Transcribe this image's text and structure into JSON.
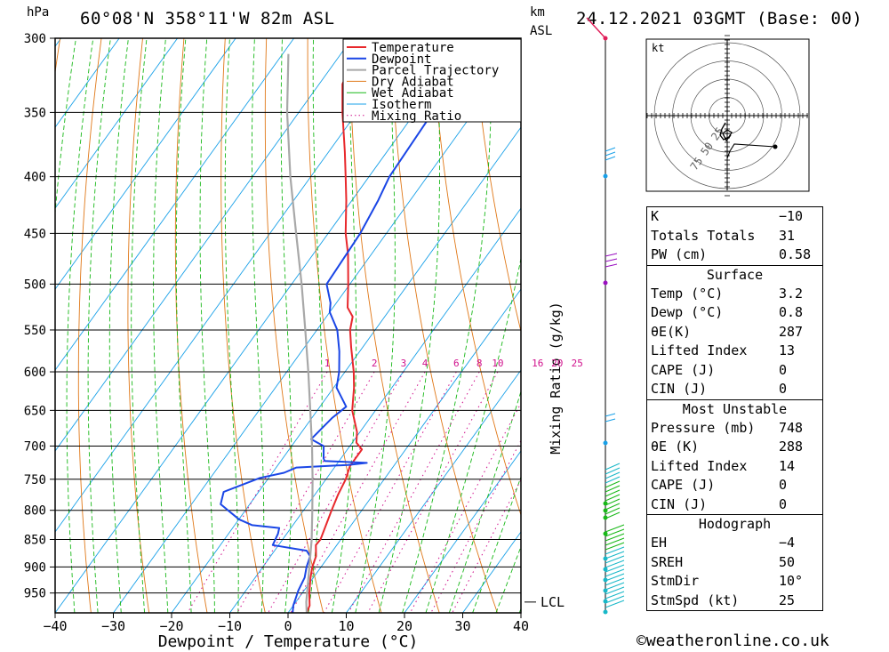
{
  "header": {
    "hpa_label": "hPa",
    "location": "60°08'N  358°11'W  82m  ASL",
    "km_label": "km",
    "asl_label": "ASL",
    "datetime": "24.12.2021  03GMT  (Base: 00)"
  },
  "chart_data": {
    "type": "line",
    "xlabel": "Dewpoint / Temperature (°C)",
    "ylabel": "hPa",
    "y2label": "Mixing Ratio (g/kg)",
    "xlim": [
      -40,
      40
    ],
    "ylim": [
      990,
      300
    ],
    "y_scale": "log",
    "x_ticks": [
      "-40",
      "-30",
      "-20",
      "-10",
      "0",
      "10",
      "20",
      "30",
      "40"
    ],
    "y_ticks": [
      "300",
      "350",
      "400",
      "450",
      "500",
      "550",
      "600",
      "650",
      "700",
      "750",
      "800",
      "850",
      "900",
      "950"
    ],
    "legend": [
      "Temperature",
      "Dewpoint",
      "Parcel Trajectory",
      "Dry Adiabat",
      "Wet Adiabat",
      "Isotherm",
      "Mixing Ratio"
    ],
    "legend_position": "top-right",
    "mixing_ratio_labels": [
      "1",
      "2",
      "3",
      "4",
      "6",
      "8",
      "10",
      "16",
      "20",
      "25"
    ],
    "lcl_label": "LCL",
    "lcl_pressure": 968,
    "colors": {
      "temperature": "#e8282c",
      "dewpoint": "#1a46e6",
      "parcel": "#a8a8a8",
      "dry_adiabat": "#e07818",
      "wet_adiabat": "#18b818",
      "isotherm": "#18a0e8",
      "mixing_ratio": "#d0108c"
    },
    "series": [
      {
        "name": "Temperature",
        "points": [
          [
            990,
            3.2
          ],
          [
            975,
            2.8
          ],
          [
            950,
            1.2
          ],
          [
            920,
            -0.5
          ],
          [
            900,
            -1.5
          ],
          [
            880,
            -2.2
          ],
          [
            860,
            -3.6
          ],
          [
            850,
            -3.5
          ],
          [
            820,
            -4.5
          ],
          [
            800,
            -5.2
          ],
          [
            775,
            -6.0
          ],
          [
            750,
            -6.6
          ],
          [
            730,
            -7.5
          ],
          [
            720,
            -7.5
          ],
          [
            705,
            -7.5
          ],
          [
            695,
            -9.3
          ],
          [
            680,
            -10.5
          ],
          [
            650,
            -14.0
          ],
          [
            620,
            -16.5
          ],
          [
            600,
            -18.5
          ],
          [
            570,
            -22.0
          ],
          [
            550,
            -24.3
          ],
          [
            535,
            -25.5
          ],
          [
            525,
            -27.5
          ],
          [
            500,
            -30.3
          ],
          [
            470,
            -34.0
          ],
          [
            450,
            -37.0
          ],
          [
            420,
            -41.0
          ],
          [
            400,
            -44.0
          ],
          [
            380,
            -47.2
          ],
          [
            350,
            -52.5
          ],
          [
            330,
            -56.0
          ],
          [
            315,
            -57.0
          ],
          [
            300,
            -58.0
          ]
        ]
      },
      {
        "name": "Dewpoint",
        "points": [
          [
            990,
            0.8
          ],
          [
            975,
            0.0
          ],
          [
            960,
            -0.5
          ],
          [
            945,
            -1.0
          ],
          [
            920,
            -1.5
          ],
          [
            900,
            -2.5
          ],
          [
            880,
            -3.2
          ],
          [
            870,
            -4.5
          ],
          [
            860,
            -11.0
          ],
          [
            840,
            -11.5
          ],
          [
            830,
            -12.0
          ],
          [
            825,
            -17.0
          ],
          [
            815,
            -20.0
          ],
          [
            790,
            -25.0
          ],
          [
            770,
            -26.0
          ],
          [
            748,
            -21.5
          ],
          [
            740,
            -18.0
          ],
          [
            732,
            -16.5
          ],
          [
            728,
            -8.0
          ],
          [
            725,
            -5.0
          ],
          [
            722,
            -12.5
          ],
          [
            718,
            -13.0
          ],
          [
            700,
            -14.5
          ],
          [
            690,
            -17.5
          ],
          [
            660,
            -16.5
          ],
          [
            645,
            -15.5
          ],
          [
            620,
            -19.5
          ],
          [
            600,
            -21.0
          ],
          [
            575,
            -23.5
          ],
          [
            550,
            -26.5
          ],
          [
            530,
            -30.0
          ],
          [
            520,
            -31.0
          ],
          [
            500,
            -34.0
          ],
          [
            450,
            -34.5
          ],
          [
            420,
            -35.5
          ],
          [
            400,
            -36.5
          ],
          [
            350,
            -37.0
          ],
          [
            320,
            -36.5
          ],
          [
            310,
            -34.5
          ],
          [
            305,
            -32.5
          ],
          [
            300,
            -31.0
          ]
        ]
      },
      {
        "name": "Parcel Trajectory",
        "points": [
          [
            990,
            3.2
          ],
          [
            968,
            1.8
          ],
          [
            900,
            -2.0
          ],
          [
            850,
            -5.0
          ],
          [
            800,
            -8.5
          ],
          [
            750,
            -12.3
          ],
          [
            700,
            -16.5
          ],
          [
            650,
            -21.2
          ],
          [
            600,
            -26.3
          ],
          [
            550,
            -32.0
          ],
          [
            500,
            -38.3
          ],
          [
            450,
            -45.5
          ],
          [
            400,
            -53.5
          ],
          [
            350,
            -62.0
          ],
          [
            310,
            -69.0
          ]
        ]
      }
    ]
  },
  "hodograph": {
    "unit_label": "kt",
    "ring_labels": [
      "25",
      "50",
      "75"
    ]
  },
  "stats": {
    "indices": [
      {
        "label": "K",
        "value": "-10"
      },
      {
        "label": "Totals Totals",
        "value": "31"
      },
      {
        "label": "PW (cm)",
        "value": "0.58"
      }
    ],
    "surface": {
      "title": "Surface",
      "rows": [
        {
          "label": "Temp (°C)",
          "value": "3.2"
        },
        {
          "label": "Dewp (°C)",
          "value": "0.8"
        },
        {
          "label": "θE(K)",
          "value": "287"
        },
        {
          "label": "Lifted Index",
          "value": "13"
        },
        {
          "label": "CAPE (J)",
          "value": "0"
        },
        {
          "label": "CIN (J)",
          "value": "0"
        }
      ]
    },
    "most_unstable": {
      "title": "Most Unstable",
      "rows": [
        {
          "label": "Pressure (mb)",
          "value": "748"
        },
        {
          "label": "θE (K)",
          "value": "288"
        },
        {
          "label": "Lifted Index",
          "value": "14"
        },
        {
          "label": "CAPE (J)",
          "value": "0"
        },
        {
          "label": "CIN (J)",
          "value": "0"
        }
      ]
    },
    "hodograph": {
      "title": "Hodograph",
      "rows": [
        {
          "label": "EH",
          "value": "-4"
        },
        {
          "label": "SREH",
          "value": "50"
        },
        {
          "label": "StmDir",
          "value": "10°"
        },
        {
          "label": "StmSpd (kt)",
          "value": "25"
        }
      ]
    }
  },
  "footer": {
    "copyright": "©weatheronline.co.uk"
  }
}
